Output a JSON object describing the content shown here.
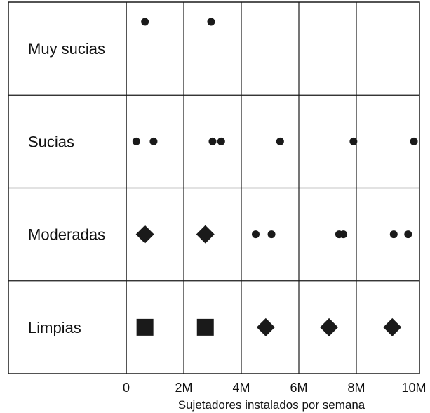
{
  "chart_data": {
    "type": "scatter",
    "title": "",
    "xlabel": "Sujetadores instalados por semana",
    "ylabel": "",
    "xlim": [
      0,
      10
    ],
    "x_ticks": [
      "0",
      "2M",
      "4M",
      "6M",
      "8M",
      "10M"
    ],
    "categories": [
      "Muy sucias",
      "Sucias",
      "Moderadas",
      "Limpias"
    ],
    "grid": true,
    "marker_color": "#1a1a1a",
    "points": [
      {
        "category": "Muy sucias",
        "x": 0.65,
        "marker": "circle"
      },
      {
        "category": "Muy sucias",
        "x": 2.95,
        "marker": "circle"
      },
      {
        "category": "Sucias",
        "x": 0.35,
        "marker": "circle"
      },
      {
        "category": "Sucias",
        "x": 0.95,
        "marker": "circle"
      },
      {
        "category": "Sucias",
        "x": 3.0,
        "marker": "circle"
      },
      {
        "category": "Sucias",
        "x": 3.3,
        "marker": "circle"
      },
      {
        "category": "Sucias",
        "x": 5.35,
        "marker": "circle"
      },
      {
        "category": "Sucias",
        "x": 7.9,
        "marker": "circle"
      },
      {
        "category": "Sucias",
        "x": 10.0,
        "marker": "circle"
      },
      {
        "category": "Moderadas",
        "x": 0.65,
        "marker": "diamond"
      },
      {
        "category": "Moderadas",
        "x": 2.75,
        "marker": "diamond"
      },
      {
        "category": "Moderadas",
        "x": 4.5,
        "marker": "circle"
      },
      {
        "category": "Moderadas",
        "x": 5.05,
        "marker": "circle"
      },
      {
        "category": "Moderadas",
        "x": 7.4,
        "marker": "circle"
      },
      {
        "category": "Moderadas",
        "x": 7.55,
        "marker": "circle"
      },
      {
        "category": "Moderadas",
        "x": 9.3,
        "marker": "circle"
      },
      {
        "category": "Moderadas",
        "x": 9.8,
        "marker": "circle"
      },
      {
        "category": "Limpias",
        "x": 0.65,
        "marker": "square"
      },
      {
        "category": "Limpias",
        "x": 2.75,
        "marker": "square"
      },
      {
        "category": "Limpias",
        "x": 4.85,
        "marker": "diamond"
      },
      {
        "category": "Limpias",
        "x": 7.05,
        "marker": "diamond"
      },
      {
        "category": "Limpias",
        "x": 9.25,
        "marker": "diamond"
      }
    ]
  }
}
